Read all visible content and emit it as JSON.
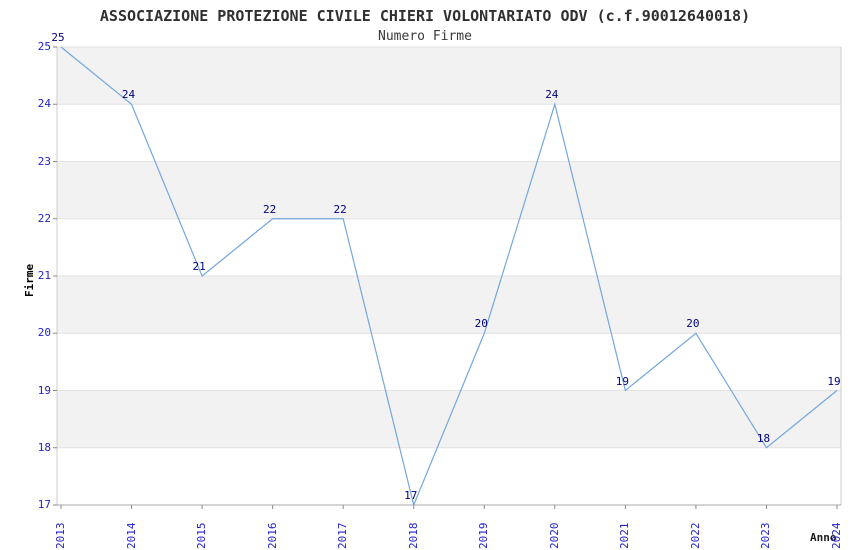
{
  "chart": {
    "title": "ASSOCIAZIONE PROTEZIONE CIVILE CHIERI VOLONTARIATO ODV (c.f.90012640018)",
    "subtitle": "Numero Firme",
    "xlabel": "Anno",
    "ylabel": "Firme"
  },
  "chart_data": {
    "type": "line",
    "title": "ASSOCIAZIONE PROTEZIONE CIVILE CHIERI VOLONTARIATO ODV (c.f.90012640018)",
    "subtitle": "Numero Firme",
    "xlabel": "Anno",
    "ylabel": "Firme",
    "x": [
      2013,
      2014,
      2015,
      2016,
      2017,
      2018,
      2019,
      2020,
      2021,
      2022,
      2023,
      2024
    ],
    "values": [
      25,
      24,
      21,
      22,
      22,
      17,
      20,
      24,
      19,
      20,
      18,
      19
    ],
    "ylim": [
      17,
      25
    ],
    "yticks": [
      17,
      18,
      19,
      20,
      21,
      22,
      23,
      24,
      25
    ],
    "point_labels_visible": true,
    "markers": "none",
    "legend": "none",
    "grid": "horizontal-alternating-bands",
    "colors": {
      "line": "#74a7dc",
      "tick_label": "#2222cc",
      "point_label": "#000080",
      "band": "#f2f2f2",
      "band_alt": "#ffffff",
      "gridline": "#e2e2e2",
      "spine_bottom": "#a9a9a9",
      "spine_side": "#cccccc",
      "tick_mark": "#8a8a8a",
      "background": "#ffffff"
    }
  }
}
